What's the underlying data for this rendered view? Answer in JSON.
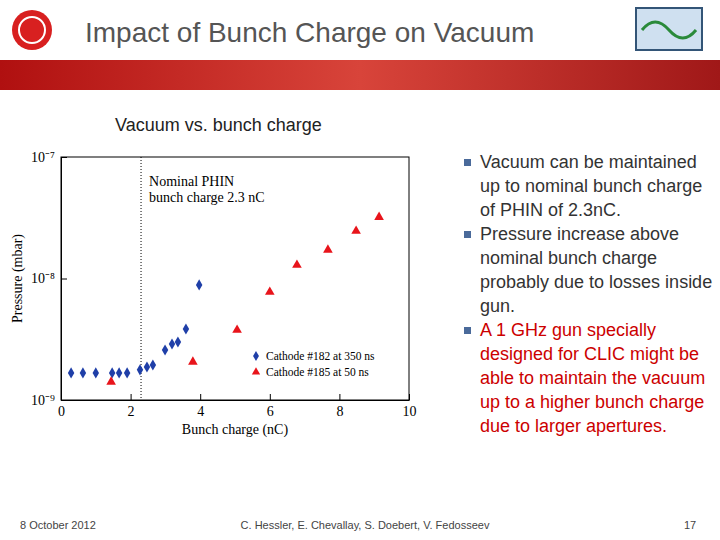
{
  "slide": {
    "title": "Impact of Bunch Charge on Vacuum",
    "bullets": [
      {
        "text": "Vacuum can be maintained up to nominal bunch charge of PHIN of 2.3nC.",
        "color": "#333333"
      },
      {
        "text": "Pressure increase above nominal bunch charge probably due to losses inside gun.",
        "color": "#333333"
      },
      {
        "text": "A 1 GHz gun specially designed for CLIC might be able to maintain the vacuum up to a higher bunch charge due to larger apertures.",
        "color": "#cc0000"
      }
    ],
    "footer": {
      "date": "8 October 2012",
      "authors": "C. Hessler, E. Chevallay, S. Doebert, V. Fedosseev",
      "page": "17"
    }
  },
  "chart_data": {
    "type": "scatter",
    "title": "Vacuum vs. bunch charge",
    "x_label": "Bunch charge (nC)",
    "y_label": "Pressure (mbar)",
    "log": "y",
    "xlim": [
      0,
      10
    ],
    "xticks": [
      0,
      2,
      4,
      6,
      8,
      10
    ],
    "ylim": [
      1e-09,
      1e-07
    ],
    "yticks": [
      {
        "value": 1e-09,
        "label": "10⁻⁹"
      },
      {
        "value": 1e-08,
        "label": "10⁻⁸"
      },
      {
        "value": 1e-07,
        "label": "10⁻⁷"
      }
    ],
    "legend": "lower right",
    "annotations": [
      {
        "x": 2.3,
        "lines": [
          "Nominal PHIN",
          "bunch charge 2.3 nC"
        ]
      }
    ],
    "series": [
      {
        "name": "Cathode #182 at 350 ns",
        "color": "#1f3fa8",
        "marker": "diamond",
        "x": [
          0.29,
          0.63,
          1.0,
          1.47,
          1.67,
          1.9,
          2.27,
          2.47,
          2.64,
          2.99,
          3.19,
          3.36,
          3.59,
          3.97
        ],
        "values": [
          1.67e-09,
          1.67e-09,
          1.67e-09,
          1.67e-09,
          1.67e-09,
          1.67e-09,
          1.77e-09,
          1.87e-09,
          1.94e-09,
          2.58e-09,
          2.89e-09,
          3e-09,
          3.84e-09,
          8.85e-09
        ]
      },
      {
        "name": "Cathode #185 at 50 ns",
        "color": "#e8141b",
        "marker": "triangle",
        "x": [
          1.44,
          3.79,
          5.06,
          6.0,
          6.78,
          7.67,
          8.48,
          9.14
        ],
        "values": [
          1.41e-09,
          2.06e-09,
          3.77e-09,
          7.74e-09,
          1.29e-08,
          1.72e-08,
          2.46e-08,
          3.2e-08
        ]
      }
    ]
  }
}
